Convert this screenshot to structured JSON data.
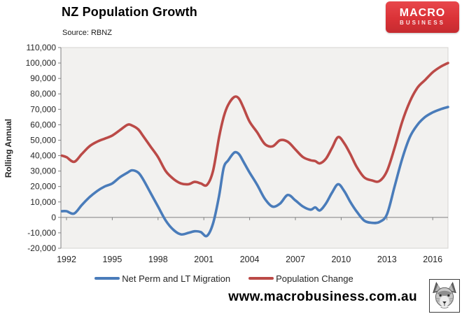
{
  "header": {
    "title": "NZ Population Growth",
    "source": "Source: RBNZ"
  },
  "logo": {
    "line1": "MACRO",
    "line2": "BUSINESS",
    "bg_color": "#d93237"
  },
  "footer": {
    "website": "www.macrobusiness.com.au",
    "fox_logo": "fox-head-logo"
  },
  "chart_data": {
    "type": "line",
    "title": "NZ Population Growth",
    "subtitle": "Source: RBNZ",
    "xlabel": "",
    "ylabel": "Rolling Annual",
    "ylim": [
      -20000,
      110000
    ],
    "ytick_step": 10000,
    "xticks": [
      1992,
      1995,
      1998,
      2001,
      2004,
      2007,
      2010,
      2013,
      2016
    ],
    "xlim": [
      1991.65,
      2017.0
    ],
    "grid": false,
    "legend_position": "bottom",
    "plot_bg": "#f2f1ef",
    "axis_color": "#808080",
    "text_color": "#262626",
    "x": [
      1991.7,
      1992.0,
      1992.5,
      1993.0,
      1993.5,
      1994.0,
      1994.5,
      1995.0,
      1995.5,
      1996.0,
      1996.3,
      1996.7,
      1997.0,
      1997.5,
      1998.0,
      1998.5,
      1999.0,
      1999.5,
      2000.0,
      2000.4,
      2000.8,
      2001.2,
      2001.6,
      2002.0,
      2002.3,
      2002.6,
      2003.0,
      2003.3,
      2003.6,
      2004.0,
      2004.5,
      2005.0,
      2005.5,
      2006.0,
      2006.5,
      2007.0,
      2007.5,
      2008.0,
      2008.3,
      2008.6,
      2009.0,
      2009.4,
      2009.8,
      2010.2,
      2010.6,
      2011.0,
      2011.5,
      2012.0,
      2012.5,
      2013.0,
      2013.5,
      2014.0,
      2014.5,
      2015.0,
      2015.5,
      2016.0,
      2016.5,
      2017.0
    ],
    "series": [
      {
        "name": "Net Perm and LT Migration",
        "color": "#4a7cba",
        "values": [
          4000,
          4000,
          2500,
          8000,
          13000,
          17000,
          20000,
          22000,
          26000,
          29000,
          30500,
          29000,
          25000,
          16000,
          7000,
          -2000,
          -8000,
          -11000,
          -10000,
          -9000,
          -9500,
          -12000,
          -4000,
          14000,
          32000,
          37000,
          42000,
          41000,
          36000,
          29000,
          21000,
          12000,
          7000,
          9000,
          14500,
          11000,
          7000,
          5000,
          6500,
          4500,
          9000,
          16000,
          21500,
          17000,
          10000,
          4000,
          -2000,
          -3500,
          -3000,
          2000,
          20000,
          38000,
          52000,
          60000,
          65000,
          68000,
          70000,
          71500
        ]
      },
      {
        "name": "Population Change",
        "color": "#bb4a47",
        "values": [
          40000,
          39000,
          36000,
          41000,
          46000,
          49000,
          51000,
          53000,
          56500,
          60000,
          59500,
          57000,
          53000,
          46000,
          39000,
          30000,
          25000,
          22000,
          21500,
          23000,
          22000,
          21000,
          30000,
          52000,
          65000,
          73000,
          78000,
          77000,
          71000,
          62000,
          55000,
          47500,
          46000,
          50000,
          49000,
          44000,
          39000,
          37000,
          36500,
          35000,
          38000,
          45000,
          52000,
          48000,
          41000,
          33000,
          26000,
          24000,
          23500,
          30000,
          45000,
          62000,
          75000,
          84000,
          89000,
          94000,
          97500,
          100000
        ]
      }
    ]
  }
}
